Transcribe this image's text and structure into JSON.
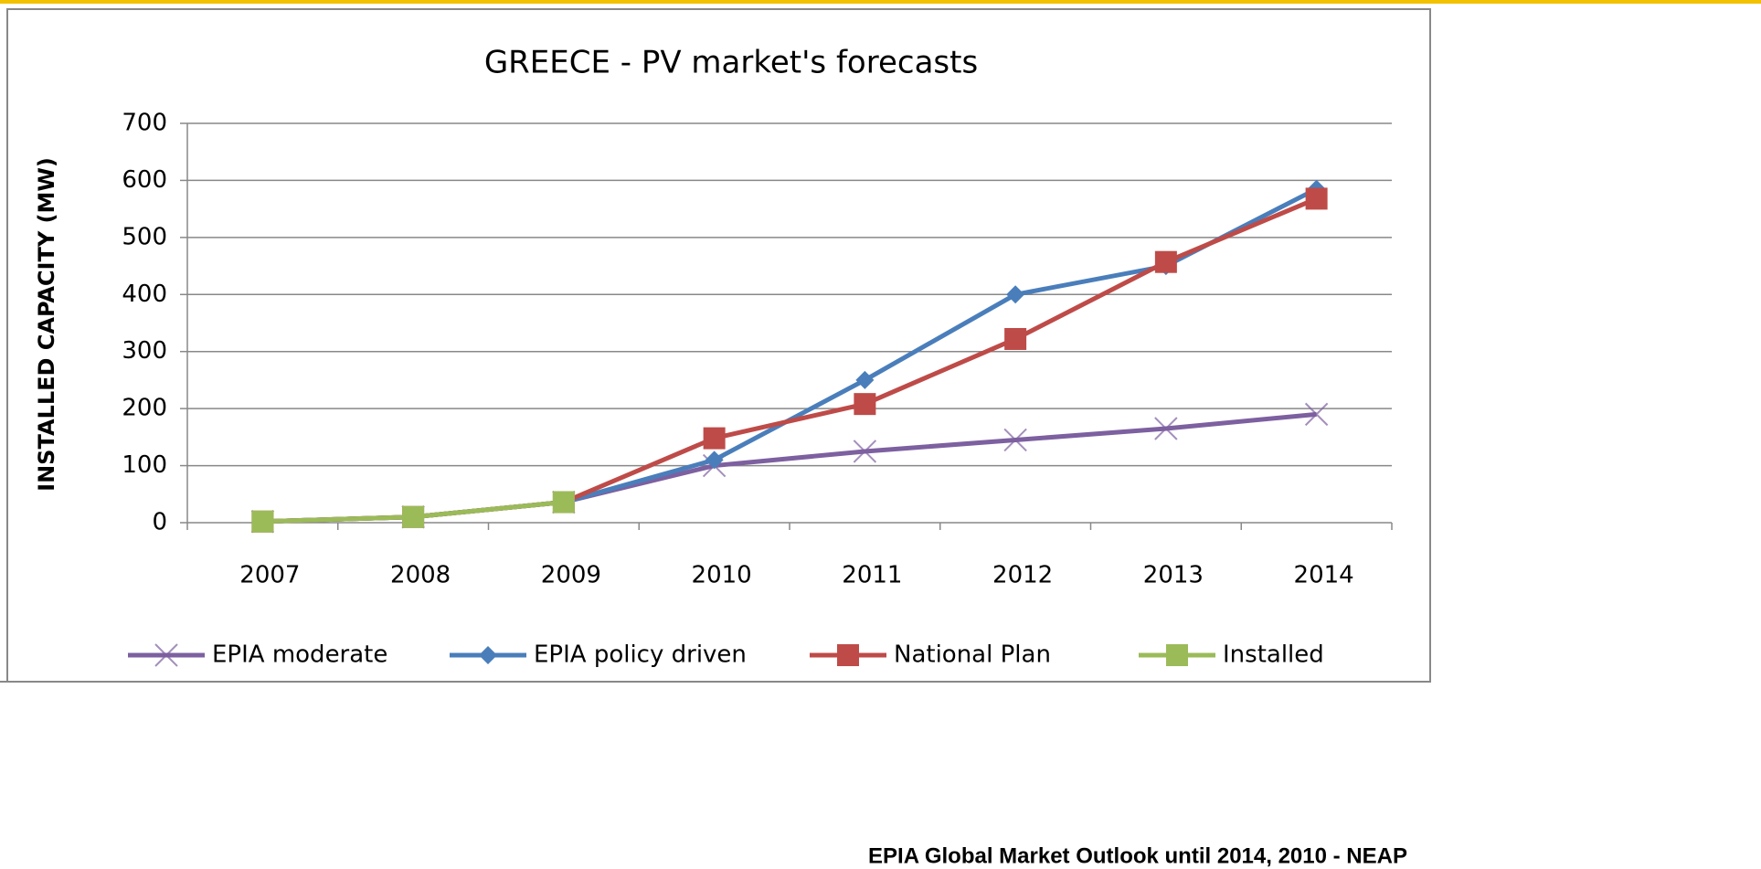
{
  "chart_data": {
    "type": "line",
    "title": "GREECE - PV market's forecasts",
    "y_label": "INSTALLED CAPACITY (MW)",
    "source": "EPIA Global Market Outlook until 2014, 2010 - NEAP",
    "categories": [
      "2007",
      "2008",
      "2009",
      "2010",
      "2011",
      "2012",
      "2013",
      "2014"
    ],
    "series": [
      {
        "name": "EPIA moderate",
        "color": "#7d60a0",
        "marker": "x",
        "values": [
          2,
          10,
          36,
          100,
          125,
          145,
          165,
          190
        ]
      },
      {
        "name": "EPIA policy driven",
        "color": "#4a7ebb",
        "marker": "diamond",
        "values": [
          2,
          10,
          36,
          110,
          250,
          400,
          450,
          585
        ]
      },
      {
        "name": "National Plan",
        "color": "#be4b48",
        "marker": "square",
        "values": [
          2,
          10,
          36,
          148,
          208,
          322,
          457,
          568
        ]
      },
      {
        "name": "Installed",
        "color": "#9bbb59",
        "marker": "square",
        "values": [
          2,
          10,
          36,
          null,
          null,
          null,
          null,
          null
        ]
      }
    ],
    "ylim": [
      0,
      700
    ],
    "yticks": [
      0,
      100,
      200,
      300,
      400,
      500,
      600,
      700
    ],
    "grid": true,
    "legend": "bottom"
  }
}
